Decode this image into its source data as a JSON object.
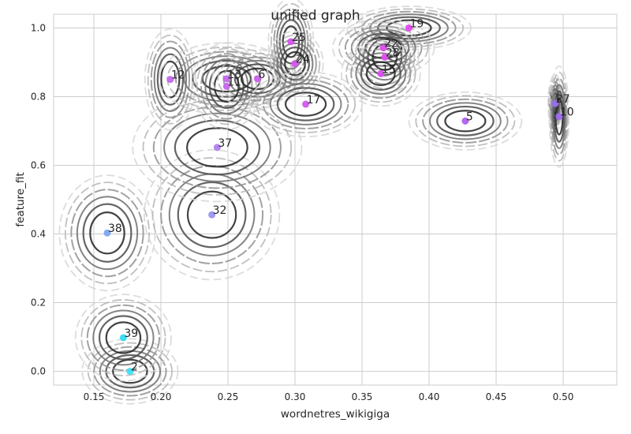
{
  "chart_data": {
    "type": "scatter",
    "title": "unified graph",
    "xlabel": "wordnetres_wikigiga",
    "ylabel": "feature_fit",
    "xlim": [
      0.12,
      0.54
    ],
    "ylim": [
      -0.04,
      1.04
    ],
    "xticks": [
      "0.15",
      "0.20",
      "0.25",
      "0.30",
      "0.35",
      "0.40",
      "0.45",
      "0.50"
    ],
    "yticks": [
      "0.0",
      "0.2",
      "0.4",
      "0.6",
      "0.8",
      "1.0"
    ],
    "grid": true,
    "legend": "none",
    "points": [
      {
        "label": "2",
        "x": 0.177,
        "y": 0.0,
        "color": "#3fe0f4",
        "sx": 0.017,
        "sy": 0.045
      },
      {
        "label": "39",
        "x": 0.172,
        "y": 0.098,
        "color": "#33dcf2",
        "sx": 0.017,
        "sy": 0.06
      },
      {
        "label": "38",
        "x": 0.16,
        "y": 0.403,
        "color": "#7ba6f3",
        "sx": 0.017,
        "sy": 0.08
      },
      {
        "label": "32",
        "x": 0.238,
        "y": 0.456,
        "color": "#9a93f1",
        "sx": 0.024,
        "sy": 0.09
      },
      {
        "label": "37",
        "x": 0.242,
        "y": 0.652,
        "color": "#b07fef",
        "sx": 0.03,
        "sy": 0.075
      },
      {
        "label": "12",
        "x": 0.207,
        "y": 0.85,
        "color": "#c566ed",
        "sx": 0.009,
        "sy": 0.07
      },
      {
        "label": "13",
        "x": 0.249,
        "y": 0.852,
        "color": "#c566ed",
        "sx": 0.024,
        "sy": 0.05
      },
      {
        "label": "11",
        "x": 0.249,
        "y": 0.83,
        "color": "#c566ed",
        "sx": 0.012,
        "sy": 0.06
      },
      {
        "label": "6",
        "x": 0.272,
        "y": 0.852,
        "color": "#ca5fed",
        "sx": 0.016,
        "sy": 0.04
      },
      {
        "label": "25",
        "x": 0.297,
        "y": 0.96,
        "color": "#d453ee",
        "sx": 0.008,
        "sy": 0.06
      },
      {
        "label": "24",
        "x": 0.3,
        "y": 0.896,
        "color": "#d453ee",
        "sx": 0.01,
        "sy": 0.045
      },
      {
        "label": "17",
        "x": 0.308,
        "y": 0.778,
        "color": "#d058ec",
        "sx": 0.02,
        "sy": 0.045
      },
      {
        "label": "19",
        "x": 0.385,
        "y": 1.0,
        "color": "#e349f0",
        "sx": 0.022,
        "sy": 0.03
      },
      {
        "label": "22",
        "x": 0.366,
        "y": 0.942,
        "color": "#e04bf0",
        "sx": 0.018,
        "sy": 0.04
      },
      {
        "label": "28",
        "x": 0.367,
        "y": 0.915,
        "color": "#df4cf0",
        "sx": 0.012,
        "sy": 0.05
      },
      {
        "label": "15",
        "x": 0.364,
        "y": 0.867,
        "color": "#d950ef",
        "sx": 0.014,
        "sy": 0.045
      },
      {
        "label": "5",
        "x": 0.427,
        "y": 0.729,
        "color": "#b061ef",
        "sx": 0.02,
        "sy": 0.04
      },
      {
        "label": "27",
        "x": 0.494,
        "y": 0.78,
        "color": "#9a70ef",
        "sx": 0.0025,
        "sy": 0.04
      },
      {
        "label": "10",
        "x": 0.497,
        "y": 0.742,
        "color": "#9c6bee",
        "sx": 0.0035,
        "sy": 0.07
      }
    ]
  }
}
